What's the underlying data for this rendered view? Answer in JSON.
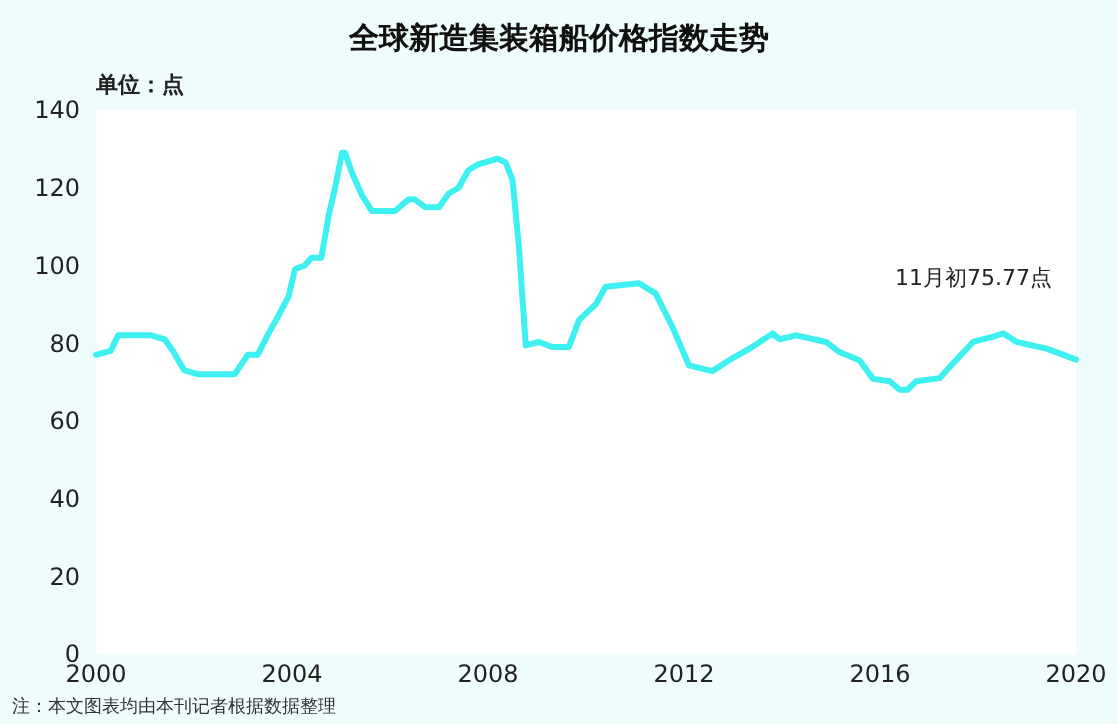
{
  "chart_data": {
    "type": "line",
    "title": "全球新造集装箱船价格指数走势",
    "ylabel": "单位：点",
    "annotations": [
      "11月初75.77点",
      "注：本文图表均由本刊记者根据数据整理"
    ],
    "x": [
      2000,
      2000.3,
      2000.45,
      2001.13,
      2001.4,
      2001.57,
      2001.8,
      2002.08,
      2002.83,
      2003.1,
      2003.3,
      2003.5,
      2003.72,
      2003.93,
      2004.06,
      2004.26,
      2004.4,
      2004.6,
      2004.75,
      2004.88,
      2005.02,
      2005.08,
      2005.22,
      2005.43,
      2005.63,
      2006.1,
      2006.38,
      2006.5,
      2006.72,
      2007,
      2007.2,
      2007.4,
      2007.6,
      2007.8,
      2008.2,
      2008.36,
      2008.5,
      2008.63,
      2008.77,
      2009.04,
      2009.31,
      2009.65,
      2009.86,
      2010.2,
      2010.4,
      2011.08,
      2011.42,
      2011.77,
      2012.1,
      2012.58,
      2012.92,
      2013.33,
      2013.81,
      2013.95,
      2014.29,
      2014.9,
      2015.17,
      2015.58,
      2015.86,
      2016.2,
      2016.4,
      2016.56,
      2016.74,
      2017.22,
      2017.49,
      2017.9,
      2018.31,
      2018.52,
      2018.79,
      2019.4,
      2020
    ],
    "series": [
      {
        "color": "#3ef0f0",
        "values": [
          77,
          78,
          82,
          82,
          81,
          78,
          73,
          72,
          72,
          77,
          77,
          82,
          87,
          92,
          99,
          100,
          102,
          102,
          113,
          120,
          129,
          129,
          124,
          118,
          114,
          114,
          117,
          117,
          115,
          115,
          118.5,
          120,
          124.5,
          126,
          127.5,
          126.5,
          122,
          105,
          79.4,
          80.3,
          79,
          79,
          86,
          90,
          94.5,
          95.4,
          92.8,
          84,
          74.3,
          72.8,
          75.6,
          78.5,
          82.5,
          81,
          82,
          80.3,
          77.7,
          75.6,
          70.8,
          70.2,
          68,
          68,
          70.2,
          71,
          74.8,
          80.3,
          81.7,
          82.5,
          80.3,
          78.6,
          75.77
        ]
      }
    ],
    "xlim": [
      2000,
      2020
    ],
    "xticks": [
      2000,
      2004,
      2008,
      2012,
      2016,
      2020
    ],
    "ylim": [
      0,
      140
    ],
    "yticks": [
      0,
      20,
      40,
      60,
      80,
      100,
      120,
      140
    ],
    "grid": false,
    "marker": "none",
    "line_style": "solid"
  }
}
